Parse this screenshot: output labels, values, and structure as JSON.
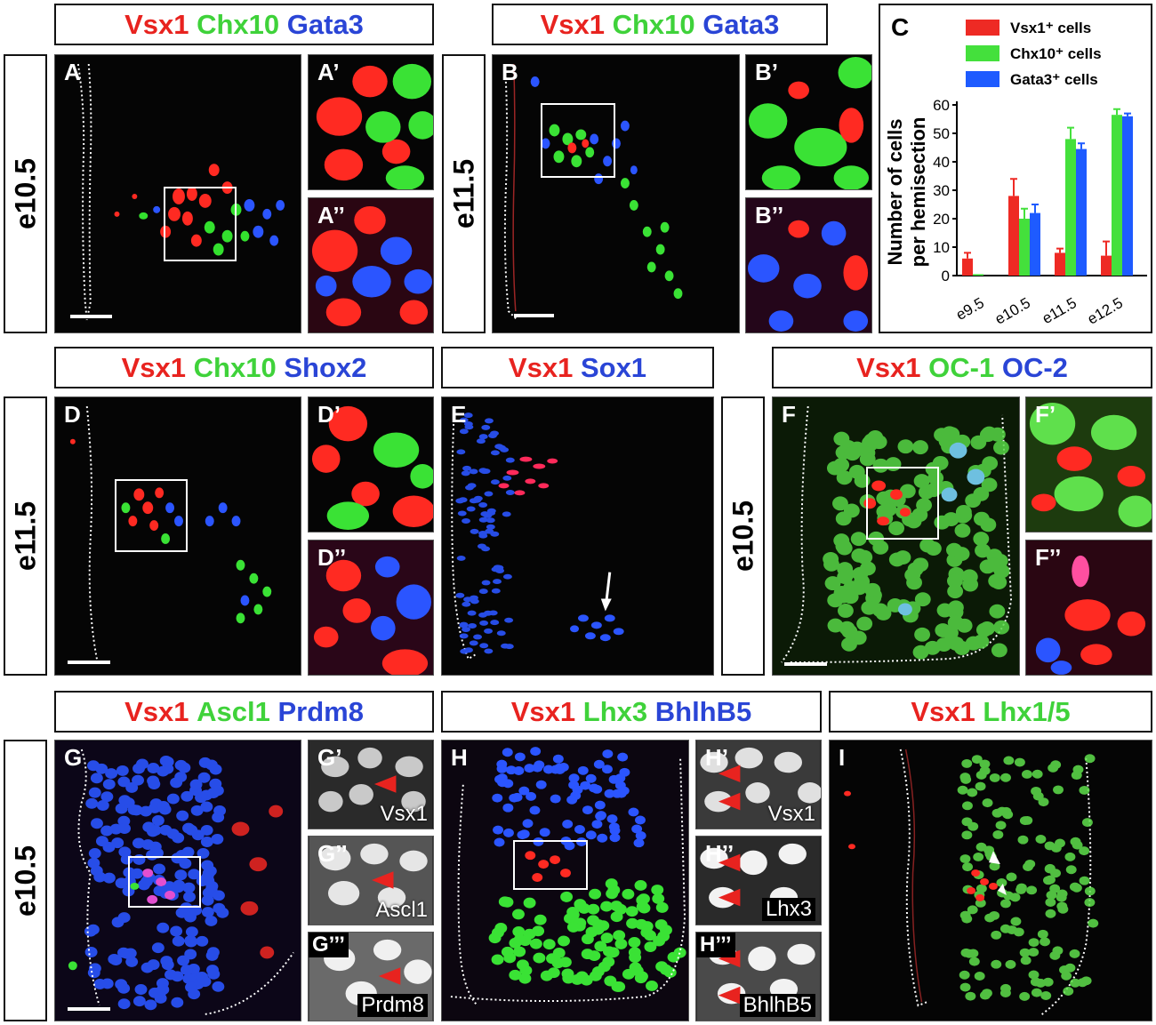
{
  "headers": {
    "ab_left": [
      {
        "text": "Vsx1",
        "color": "r"
      },
      {
        "text": "Chx10",
        "color": "g"
      },
      {
        "text": "Gata3",
        "color": "b"
      }
    ],
    "ab_right": [
      {
        "text": "Vsx1",
        "color": "r"
      },
      {
        "text": "Chx10",
        "color": "g"
      },
      {
        "text": "Gata3",
        "color": "b"
      }
    ],
    "d": [
      {
        "text": "Vsx1",
        "color": "r"
      },
      {
        "text": "Chx10",
        "color": "g"
      },
      {
        "text": "Shox2",
        "color": "b"
      }
    ],
    "e": [
      {
        "text": "Vsx1",
        "color": "r"
      },
      {
        "text": "Sox1",
        "color": "b"
      }
    ],
    "f": [
      {
        "text": "Vsx1",
        "color": "r"
      },
      {
        "text": "OC-1",
        "color": "g"
      },
      {
        "text": "OC-2",
        "color": "b"
      }
    ],
    "g": [
      {
        "text": "Vsx1",
        "color": "r"
      },
      {
        "text": "Ascl1",
        "color": "g"
      },
      {
        "text": "Prdm8",
        "color": "b"
      }
    ],
    "h": [
      {
        "text": "Vsx1",
        "color": "r"
      },
      {
        "text": "Lhx3",
        "color": "g"
      },
      {
        "text": "BhlhB5",
        "color": "b"
      }
    ],
    "i": [
      {
        "text": "Vsx1",
        "color": "r"
      },
      {
        "text": "Lhx1/5",
        "color": "g"
      }
    ]
  },
  "stages": {
    "row1_left": "e10.5",
    "row1_right": "e11.5",
    "row2_left": "e11.5",
    "row2_right": "e10.5",
    "row3": "e10.5"
  },
  "panels": {
    "A": "A",
    "A1": "A’",
    "A2": "A’’",
    "B": "B",
    "B1": "B’",
    "B2": "B’’",
    "C": "C",
    "D": "D",
    "D1": "D’",
    "D2": "D’’",
    "E": "E",
    "F": "F",
    "F1": "F’",
    "F2": "F’’",
    "G": "G",
    "G1": "G’",
    "G2": "G’’",
    "G3": "G’’’",
    "H": "H",
    "H1": "H’",
    "H2": "H’’",
    "H3": "H’’’",
    "I": "I"
  },
  "inset_labels": {
    "G1": "Vsx1",
    "G2": "Ascl1",
    "G3": "Prdm8",
    "H1": "Vsx1",
    "H2": "Lhx3",
    "H3": "BhlhB5"
  },
  "colors": {
    "red": "#e8231f",
    "green": "#3fd23a",
    "blue": "#2a45d6"
  },
  "chart_data": {
    "type": "bar",
    "categories": [
      "e9.5",
      "e10.5",
      "e11.5",
      "e12.5"
    ],
    "series": [
      {
        "name": "Vsx1⁺ cells",
        "color": "#ee2a24",
        "values": [
          6,
          28,
          8,
          7
        ],
        "errors": [
          2,
          6,
          1.5,
          5
        ]
      },
      {
        "name": "Chx10⁺ cells",
        "color": "#44e03c",
        "values": [
          0.5,
          20,
          48,
          56.5
        ],
        "errors": [
          0,
          3.5,
          4,
          2
        ]
      },
      {
        "name": "Gata3⁺ cells",
        "color": "#1e5bff",
        "values": [
          0,
          22,
          44.5,
          56
        ],
        "errors": [
          0,
          3,
          2,
          1
        ]
      }
    ],
    "ylabel": "Number of cells per hemisection",
    "ylim": [
      0,
      60
    ],
    "yticks": [
      0,
      10,
      20,
      30,
      40,
      50,
      60
    ],
    "legend": "top"
  }
}
